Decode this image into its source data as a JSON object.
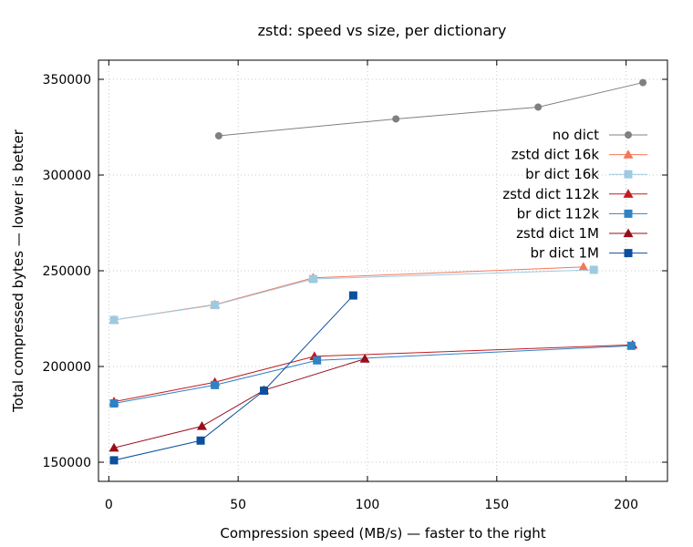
{
  "chart_data": {
    "type": "line",
    "title": "zstd: speed vs size, per dictionary",
    "xlabel": "Compression speed (MB/s) — faster to the right",
    "ylabel": "Total compressed bytes — lower is better",
    "xlim": [
      -4,
      216
    ],
    "ylim": [
      140000,
      360000
    ],
    "xticks": [
      0,
      50,
      100,
      150,
      200
    ],
    "yticks": [
      150000,
      200000,
      250000,
      300000,
      350000
    ],
    "grid": true,
    "legend_position": "top-right",
    "series": [
      {
        "name": "no dict",
        "color": "#808080",
        "marker": "circle",
        "x": [
          42.5,
          111,
          166,
          206.5
        ],
        "y": [
          320500,
          329300,
          335500,
          348300
        ]
      },
      {
        "name": "zstd dict 16k",
        "color": "#f4775a",
        "marker": "triangle",
        "x": [
          2,
          41,
          79,
          183.5
        ],
        "y": [
          224300,
          232300,
          246300,
          252000
        ]
      },
      {
        "name": "br dict 16k",
        "color": "#9ecae1",
        "marker": "square",
        "x": [
          2,
          41,
          79,
          187.5
        ],
        "y": [
          224300,
          232100,
          245700,
          250500
        ]
      },
      {
        "name": "zstd dict 112k",
        "color": "#c21b20",
        "marker": "triangle",
        "x": [
          2,
          41,
          79.5,
          202.5
        ],
        "y": [
          181600,
          191800,
          205300,
          211300
        ]
      },
      {
        "name": "br dict 112k",
        "color": "#3082c4",
        "marker": "square",
        "x": [
          2,
          41,
          80.5,
          202
        ],
        "y": [
          180700,
          190300,
          203200,
          210800
        ]
      },
      {
        "name": "zstd dict 1M",
        "color": "#990d18",
        "marker": "triangle",
        "x": [
          2,
          36,
          60,
          99
        ],
        "y": [
          157500,
          168800,
          187600,
          204000
        ]
      },
      {
        "name": "br dict 1M",
        "color": "#0b4f9e",
        "marker": "square",
        "x": [
          2,
          35.5,
          60,
          94.5
        ],
        "y": [
          151000,
          161300,
          187400,
          237100
        ]
      }
    ]
  }
}
